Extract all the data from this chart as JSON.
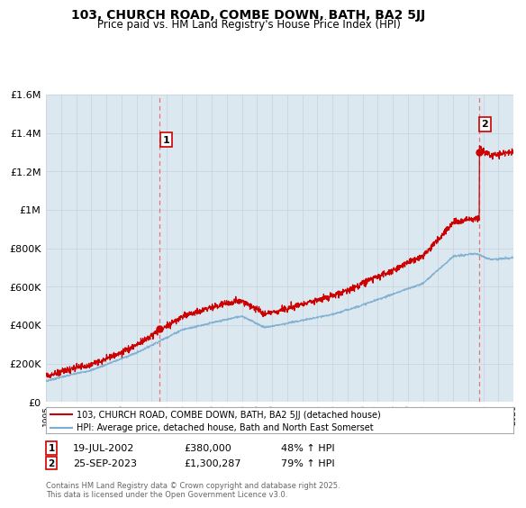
{
  "title": "103, CHURCH ROAD, COMBE DOWN, BATH, BA2 5JJ",
  "subtitle": "Price paid vs. HM Land Registry's House Price Index (HPI)",
  "legend_line1": "103, CHURCH ROAD, COMBE DOWN, BATH, BA2 5JJ (detached house)",
  "legend_line2": "HPI: Average price, detached house, Bath and North East Somerset",
  "annotation1_date": "19-JUL-2002",
  "annotation1_price": "£380,000",
  "annotation1_hpi": "48% ↑ HPI",
  "annotation2_date": "25-SEP-2023",
  "annotation2_price": "£1,300,287",
  "annotation2_hpi": "79% ↑ HPI",
  "footnote": "Contains HM Land Registry data © Crown copyright and database right 2025.\nThis data is licensed under the Open Government Licence v3.0.",
  "red_color": "#cc0000",
  "blue_color": "#7aadcf",
  "dashed_red": "#e86060",
  "grid_color": "#c8d4e0",
  "background_color": "#ffffff",
  "plot_bg_color": "#dce8f0",
  "ylim": [
    0,
    1600000
  ],
  "yticks": [
    0,
    200000,
    400000,
    600000,
    800000,
    1000000,
    1200000,
    1400000,
    1600000
  ],
  "x_start_year": 1995,
  "x_end_year": 2026,
  "sale1_year": 2002.55,
  "sale1_price": 380000,
  "sale2_year": 2023.73,
  "sale2_price": 1300287
}
